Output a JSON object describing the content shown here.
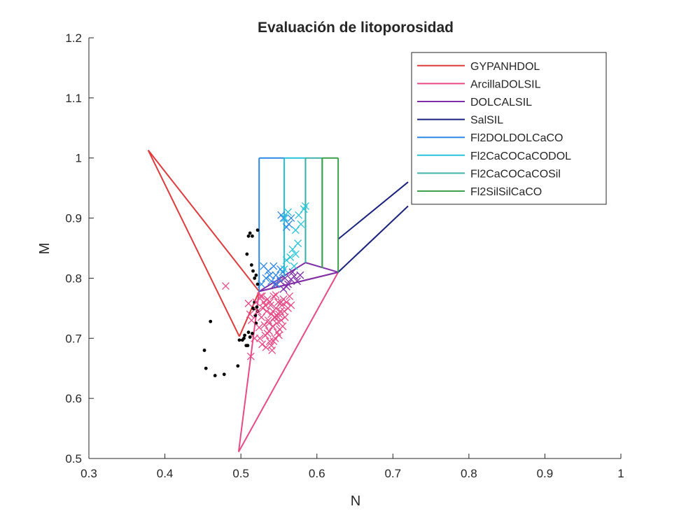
{
  "chart_data": {
    "type": "scatter",
    "title": "Evaluación de litoporosidad",
    "xlabel": "N",
    "ylabel": "M",
    "xlim": [
      0.3,
      1.0
    ],
    "ylim": [
      0.5,
      1.2
    ],
    "xticks": [
      "0.3",
      "0.4",
      "0.5",
      "0.6",
      "0.7",
      "0.8",
      "0.9",
      "1"
    ],
    "yticks": [
      "0.5",
      "0.6",
      "0.7",
      "0.8",
      "0.9",
      "1",
      "1.1",
      "1.2"
    ],
    "grid": false,
    "legend_position": "top-right",
    "series": [
      {
        "name": "GYPANHDOL",
        "color": "#e03b3b",
        "segments": [
          [
            [
              0.378,
              1.013
            ],
            [
              0.524,
              0.778
            ]
          ],
          [
            [
              0.524,
              0.778
            ],
            [
              0.498,
              0.703
            ]
          ],
          [
            [
              0.498,
              0.703
            ],
            [
              0.378,
              1.013
            ]
          ]
        ]
      },
      {
        "name": "ArcillaDOLSIL",
        "color": "#e84a87",
        "segments": [
          [
            [
              0.524,
              0.778
            ],
            [
              0.497,
              0.511
            ]
          ],
          [
            [
              0.497,
              0.511
            ],
            [
              0.628,
              0.81
            ]
          ],
          [
            [
              0.628,
              0.81
            ],
            [
              0.524,
              0.778
            ]
          ]
        ]
      },
      {
        "name": "DOLCALSIL",
        "color": "#7e2fa8",
        "segments": [
          [
            [
              0.524,
              0.778
            ],
            [
              0.628,
              0.81
            ]
          ],
          [
            [
              0.628,
              0.81
            ],
            [
              0.585,
              0.826
            ]
          ],
          [
            [
              0.585,
              0.826
            ],
            [
              0.524,
              0.778
            ]
          ]
        ]
      },
      {
        "name": "SalSIL",
        "color": "#1a237e",
        "segments": [
          [
            [
              0.628,
              0.81
            ],
            [
              0.72,
              0.92
            ]
          ],
          [
            [
              0.628,
              0.865
            ],
            [
              0.72,
              0.96
            ]
          ]
        ]
      },
      {
        "name": "Fl2DOLDOLCaCO",
        "color": "#2e88e6",
        "segments": [
          [
            [
              0.524,
              0.778
            ],
            [
              0.524,
              1.0
            ]
          ],
          [
            [
              0.524,
              1.0
            ],
            [
              0.557,
              1.0
            ]
          ],
          [
            [
              0.557,
              1.0
            ],
            [
              0.557,
              0.8
            ]
          ]
        ]
      },
      {
        "name": "Fl2CaCOCaCODOL",
        "color": "#28c4da",
        "segments": [
          [
            [
              0.557,
              0.8
            ],
            [
              0.557,
              1.0
            ]
          ],
          [
            [
              0.557,
              1.0
            ],
            [
              0.585,
              1.0
            ]
          ],
          [
            [
              0.585,
              1.0
            ],
            [
              0.585,
              0.826
            ]
          ]
        ]
      },
      {
        "name": "Fl2CaCOCaCOSil",
        "color": "#3fb3a8",
        "segments": [
          [
            [
              0.585,
              0.826
            ],
            [
              0.585,
              1.0
            ]
          ],
          [
            [
              0.585,
              1.0
            ],
            [
              0.607,
              1.0
            ]
          ],
          [
            [
              0.607,
              1.0
            ],
            [
              0.607,
              0.817
            ]
          ]
        ]
      },
      {
        "name": "Fl2SilSilCaCO",
        "color": "#3ea04a",
        "segments": [
          [
            [
              0.607,
              0.817
            ],
            [
              0.607,
              1.0
            ]
          ],
          [
            [
              0.607,
              1.0
            ],
            [
              0.628,
              1.0
            ]
          ],
          [
            [
              0.628,
              1.0
            ],
            [
              0.628,
              0.81
            ]
          ]
        ]
      }
    ],
    "data_points": [
      {
        "marker": "dot",
        "color": "#000000",
        "points": [
          [
            0.452,
            0.68
          ],
          [
            0.454,
            0.65
          ],
          [
            0.46,
            0.728
          ],
          [
            0.466,
            0.638
          ],
          [
            0.478,
            0.64
          ],
          [
            0.496,
            0.654
          ],
          [
            0.498,
            0.697
          ],
          [
            0.502,
            0.697
          ],
          [
            0.504,
            0.7
          ],
          [
            0.505,
            0.705
          ],
          [
            0.507,
            0.688
          ],
          [
            0.509,
            0.688
          ],
          [
            0.51,
            0.71
          ],
          [
            0.512,
            0.702
          ],
          [
            0.515,
            0.708
          ],
          [
            0.516,
            0.75
          ],
          [
            0.518,
            0.76
          ],
          [
            0.52,
            0.725
          ],
          [
            0.522,
            0.745
          ],
          [
            0.508,
            0.84
          ],
          [
            0.51,
            0.87
          ],
          [
            0.512,
            0.875
          ],
          [
            0.515,
            0.87
          ],
          [
            0.522,
            0.88
          ],
          [
            0.514,
            0.822
          ],
          [
            0.516,
            0.812
          ],
          [
            0.518,
            0.8
          ],
          [
            0.52,
            0.805
          ],
          [
            0.522,
            0.79
          ],
          [
            0.519,
            0.738
          ],
          [
            0.521,
            0.752
          ],
          [
            0.517,
            0.749
          ]
        ]
      },
      {
        "marker": "x",
        "color": "#e84a87",
        "points": [
          [
            0.48,
            0.787
          ],
          [
            0.51,
            0.758
          ],
          [
            0.512,
            0.74
          ],
          [
            0.514,
            0.73
          ],
          [
            0.513,
            0.67
          ],
          [
            0.518,
            0.7
          ],
          [
            0.52,
            0.76
          ],
          [
            0.522,
            0.745
          ],
          [
            0.524,
            0.718
          ],
          [
            0.525,
            0.7
          ],
          [
            0.526,
            0.77
          ],
          [
            0.527,
            0.735
          ],
          [
            0.528,
            0.69
          ],
          [
            0.529,
            0.75
          ],
          [
            0.53,
            0.76
          ],
          [
            0.531,
            0.722
          ],
          [
            0.532,
            0.705
          ],
          [
            0.533,
            0.685
          ],
          [
            0.534,
            0.745
          ],
          [
            0.535,
            0.765
          ],
          [
            0.536,
            0.73
          ],
          [
            0.537,
            0.712
          ],
          [
            0.538,
            0.695
          ],
          [
            0.539,
            0.755
          ],
          [
            0.54,
            0.74
          ],
          [
            0.541,
            0.68
          ],
          [
            0.542,
            0.72
          ],
          [
            0.543,
            0.77
          ],
          [
            0.544,
            0.735
          ],
          [
            0.545,
            0.7
          ],
          [
            0.546,
            0.75
          ],
          [
            0.547,
            0.725
          ],
          [
            0.548,
            0.71
          ],
          [
            0.549,
            0.76
          ],
          [
            0.55,
            0.74
          ],
          [
            0.551,
            0.715
          ],
          [
            0.552,
            0.745
          ],
          [
            0.553,
            0.73
          ],
          [
            0.554,
            0.755
          ],
          [
            0.555,
            0.72
          ],
          [
            0.556,
            0.765
          ],
          [
            0.557,
            0.745
          ],
          [
            0.558,
            0.735
          ],
          [
            0.56,
            0.76
          ],
          [
            0.562,
            0.75
          ],
          [
            0.564,
            0.77
          ],
          [
            0.566,
            0.755
          ],
          [
            0.538,
            0.76
          ],
          [
            0.542,
            0.745
          ],
          [
            0.546,
            0.772
          ],
          [
            0.535,
            0.708
          ],
          [
            0.54,
            0.688
          ],
          [
            0.545,
            0.735
          ],
          [
            0.532,
            0.755
          ],
          [
            0.528,
            0.77
          ],
          [
            0.55,
            0.705
          ],
          [
            0.543,
            0.695
          ],
          [
            0.537,
            0.725
          ],
          [
            0.549,
            0.735
          ],
          [
            0.553,
            0.76
          ]
        ]
      },
      {
        "marker": "x",
        "color": "#7e2fa8",
        "points": [
          [
            0.545,
            0.79
          ],
          [
            0.552,
            0.795
          ],
          [
            0.558,
            0.8
          ],
          [
            0.562,
            0.79
          ],
          [
            0.566,
            0.798
          ],
          [
            0.57,
            0.803
          ],
          [
            0.574,
            0.795
          ],
          [
            0.578,
            0.805
          ],
          [
            0.56,
            0.786
          ],
          [
            0.568,
            0.81
          ],
          [
            0.556,
            0.782
          ]
        ]
      },
      {
        "marker": "x",
        "color": "#2e88e6",
        "points": [
          [
            0.527,
            0.79
          ],
          [
            0.53,
            0.82
          ],
          [
            0.533,
            0.8
          ],
          [
            0.536,
            0.812
          ],
          [
            0.54,
            0.795
          ],
          [
            0.543,
            0.82
          ],
          [
            0.546,
            0.805
          ],
          [
            0.55,
            0.8
          ],
          [
            0.552,
            0.815
          ],
          [
            0.555,
            0.81
          ],
          [
            0.538,
            0.805
          ],
          [
            0.547,
            0.79
          ],
          [
            0.553,
            0.905
          ],
          [
            0.556,
            0.9
          ],
          [
            0.56,
            0.885
          ],
          [
            0.563,
            0.89
          ],
          [
            0.566,
            0.9
          ]
        ]
      },
      {
        "marker": "x",
        "color": "#28c4da",
        "points": [
          [
            0.558,
            0.9
          ],
          [
            0.562,
            0.91
          ],
          [
            0.572,
            0.88
          ],
          [
            0.576,
            0.905
          ],
          [
            0.579,
            0.89
          ],
          [
            0.583,
            0.915
          ],
          [
            0.585,
            0.92
          ],
          [
            0.56,
            0.83
          ],
          [
            0.565,
            0.835
          ],
          [
            0.568,
            0.848
          ],
          [
            0.572,
            0.84
          ],
          [
            0.557,
            0.815
          ],
          [
            0.57,
            0.82
          ],
          [
            0.575,
            0.858
          ]
        ]
      }
    ]
  }
}
